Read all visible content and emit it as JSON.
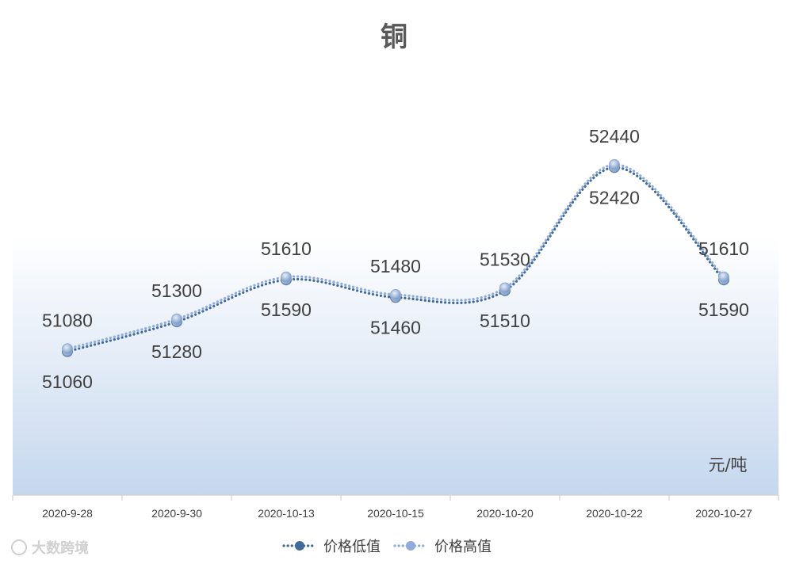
{
  "watermark": "大数跨境",
  "chart_data": {
    "type": "line",
    "title": "铜",
    "unit_label": "元/吨",
    "categories": [
      "2020-9-28",
      "2020-9-30",
      "2020-10-13",
      "2020-10-15",
      "2020-10-20",
      "2020-10-22",
      "2020-10-27"
    ],
    "series": [
      {
        "name": "价格低值",
        "values": [
          51060,
          51280,
          51590,
          51460,
          51510,
          52420,
          51590
        ],
        "color": "#3f6b9a"
      },
      {
        "name": "价格高值",
        "values": [
          51080,
          51300,
          51610,
          51480,
          51530,
          52440,
          51610
        ],
        "color": "#8faadc"
      }
    ],
    "ylim": [
      50000,
      53200
    ],
    "grid": false,
    "legend_position": "bottom",
    "smooth": true
  }
}
